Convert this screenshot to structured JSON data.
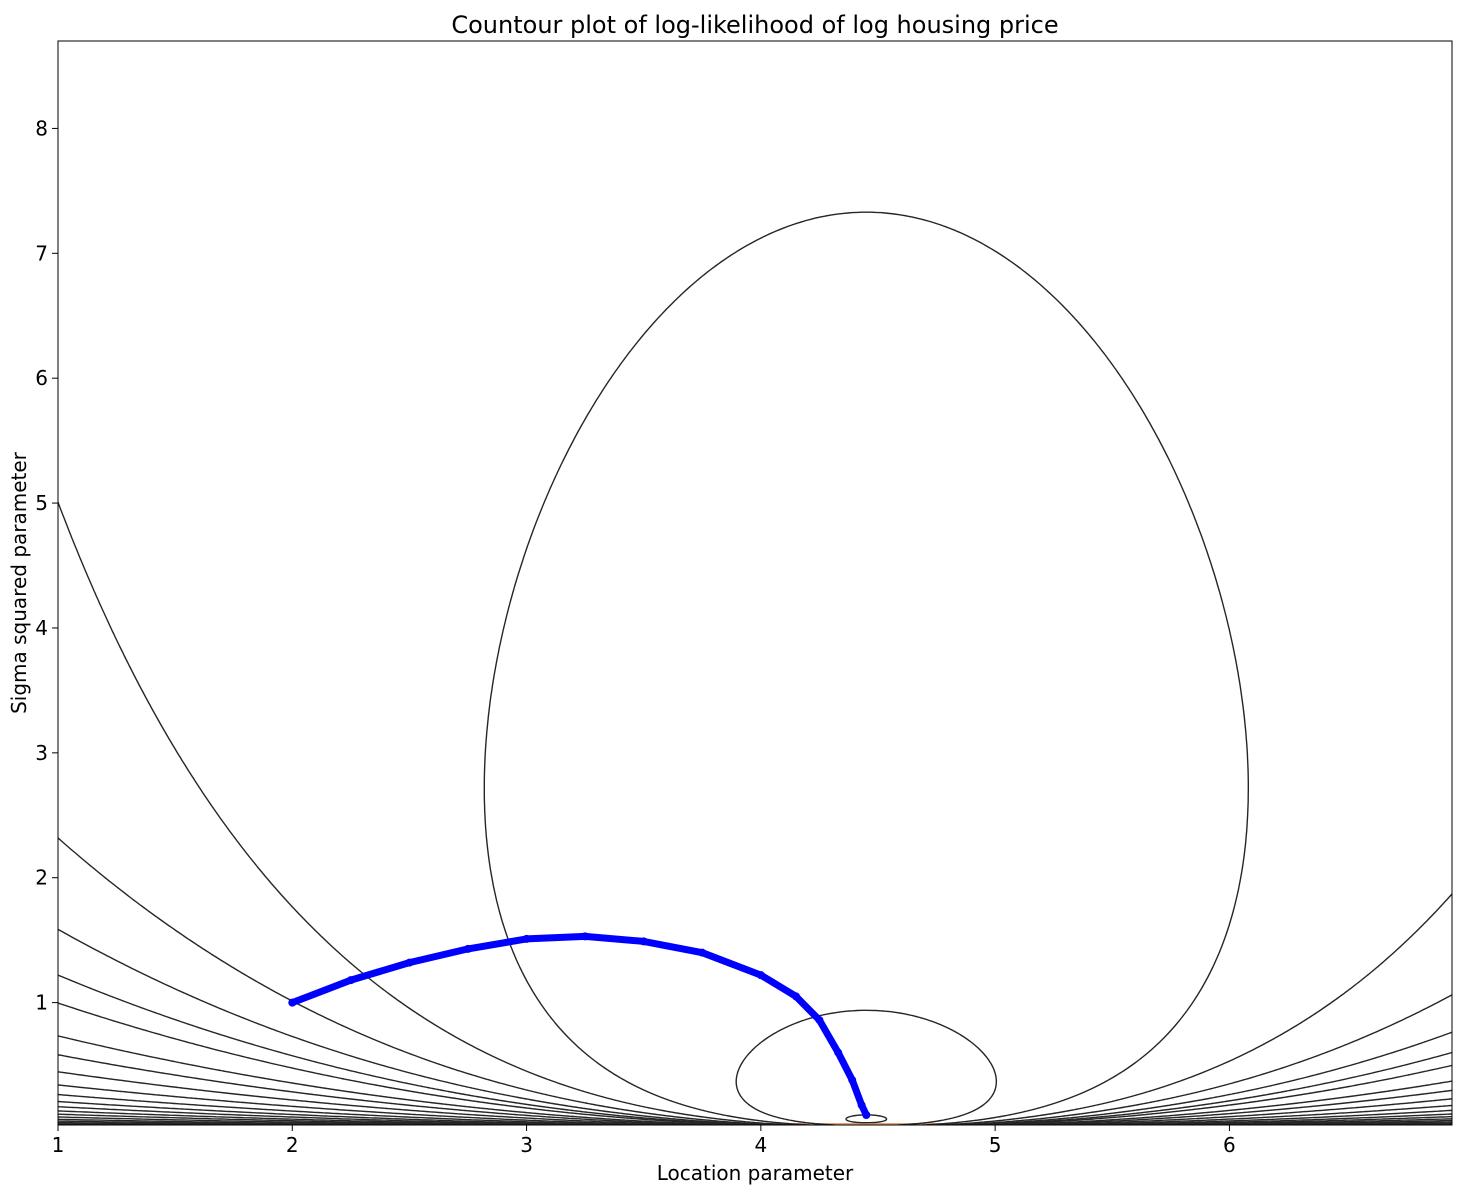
{
  "chart_data": {
    "type": "contour",
    "title": "Countour plot of log-likelihood of log housing price",
    "xlabel": "Location parameter",
    "ylabel": "Sigma squared parameter",
    "xlim": [
      1.0,
      6.95
    ],
    "ylim": [
      0.02,
      8.7
    ],
    "xticks": [
      1,
      2,
      3,
      4,
      5,
      6
    ],
    "yticks": [
      1,
      2,
      3,
      4,
      5,
      6,
      7,
      8
    ],
    "grid": false,
    "legend": "none",
    "contours": {
      "mle_mu": 4.45,
      "sample_variance": 0.0596,
      "levels": [
        -2.1,
        -1.4,
        -0.85,
        0.0,
        1.0,
        2.0,
        3.0,
        4.0,
        5.0,
        6.0,
        8.0,
        10.0,
        13.0,
        17.0,
        22.0,
        28.0,
        35.0,
        44.0,
        55.0,
        70.0,
        90.0,
        115.0,
        150.0,
        200.0,
        270.0,
        370.0
      ],
      "color": "#262626",
      "lowest_region_color": "#e8a070"
    },
    "gradient_path": {
      "color": "#0000ff",
      "start": [
        2.0,
        1.0
      ],
      "end": [
        4.45,
        0.1
      ],
      "points": [
        [
          2.0,
          1.0
        ],
        [
          2.25,
          1.18
        ],
        [
          2.5,
          1.32
        ],
        [
          2.75,
          1.43
        ],
        [
          3.0,
          1.51
        ],
        [
          3.25,
          1.53
        ],
        [
          3.5,
          1.49
        ],
        [
          3.75,
          1.4
        ],
        [
          4.0,
          1.22
        ],
        [
          4.15,
          1.05
        ],
        [
          4.25,
          0.86
        ],
        [
          4.33,
          0.6
        ],
        [
          4.39,
          0.38
        ],
        [
          4.43,
          0.18
        ],
        [
          4.45,
          0.1
        ]
      ]
    }
  }
}
